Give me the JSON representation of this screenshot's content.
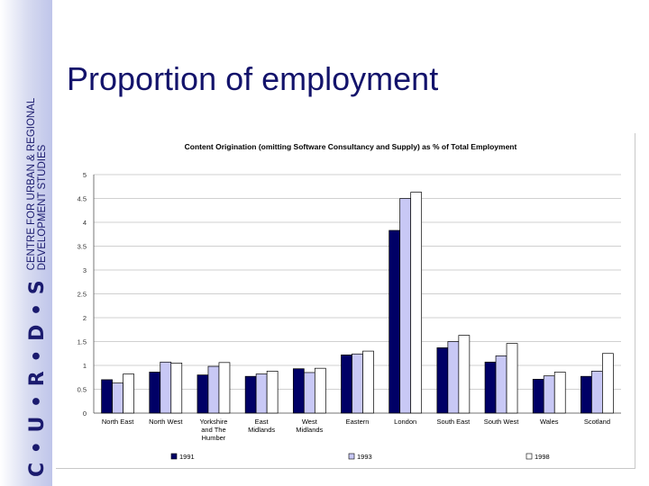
{
  "slide": {
    "title": "Proportion of employment",
    "logo": {
      "letters": "C • U • R • D • S",
      "line1": "CENTRE FOR URBAN & REGIONAL",
      "line2": "DEVELOPMENT STUDIES"
    }
  },
  "colors": {
    "title": "#13136b",
    "series": [
      "#000066",
      "#c8c8f5",
      "#ffffff"
    ]
  },
  "chart_data": {
    "type": "bar",
    "title": "Content Origination (omitting Software Consultancy and Supply) as % of Total Employment",
    "xlabel": "",
    "ylabel": "",
    "ylim": [
      0,
      5
    ],
    "yticks": [
      "0",
      "0.5",
      "1",
      "1.5",
      "2",
      "2.5",
      "3",
      "3.5",
      "4",
      "4.5",
      "5"
    ],
    "grid": true,
    "legend_position": "bottom",
    "categories": [
      [
        "North East"
      ],
      [
        "North West"
      ],
      [
        "Yorkshire",
        "and The",
        "Humber"
      ],
      [
        "East",
        "Midlands"
      ],
      [
        "West",
        "Midlands"
      ],
      [
        "Eastern"
      ],
      [
        "London"
      ],
      [
        "South East"
      ],
      [
        "South West"
      ],
      [
        "Wales"
      ],
      [
        "Scotland"
      ]
    ],
    "series": [
      {
        "name": "1991",
        "values": [
          0.7,
          0.86,
          0.8,
          0.77,
          0.93,
          1.22,
          3.83,
          1.37,
          1.07,
          0.71,
          0.77
        ]
      },
      {
        "name": "1993",
        "values": [
          0.63,
          1.07,
          0.98,
          0.82,
          0.85,
          1.24,
          4.5,
          1.5,
          1.2,
          0.78,
          0.88
        ]
      },
      {
        "name": "1998",
        "values": [
          0.82,
          1.05,
          1.06,
          0.88,
          0.94,
          1.3,
          4.63,
          1.63,
          1.46,
          0.86,
          1.25
        ]
      }
    ]
  }
}
